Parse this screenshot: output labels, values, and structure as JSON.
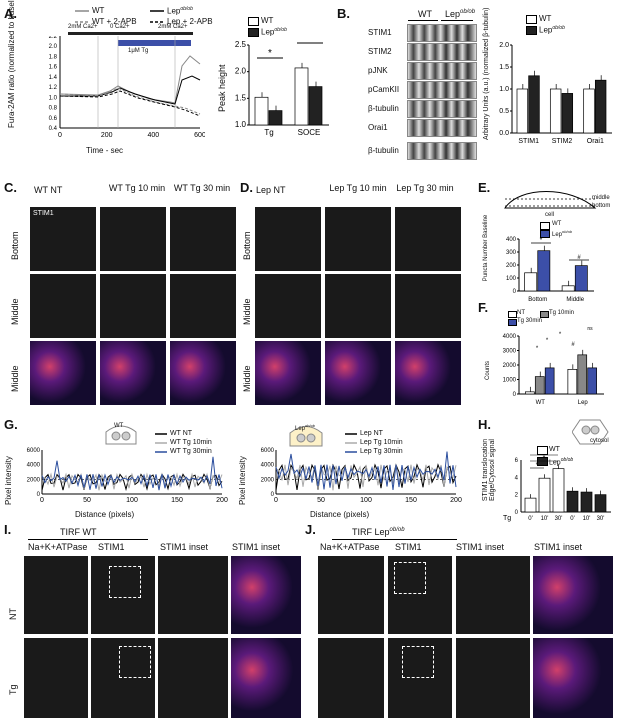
{
  "panels": {
    "A": "A.",
    "B": "B.",
    "C": "C.",
    "D": "D.",
    "E": "E.",
    "F": "F.",
    "G": "G.",
    "H": "H.",
    "I": "I.",
    "J": "J."
  },
  "panelA": {
    "legend": [
      "WT",
      "WT + 2-APB",
      "Lep",
      "Lep + 2-APB"
    ],
    "sup": "ob/ob",
    "protocol": [
      "2mM Ca2+",
      "0 Ca2+",
      "2mM Ca2+"
    ],
    "tg": "1μM Tg",
    "ylabel": "Fura-2AM ratio (normalized to baseline)",
    "xlabel": "Time - sec",
    "xticks": [
      "0",
      "200",
      "400",
      "600"
    ],
    "yticks": [
      "0.4",
      "0.6",
      "0.8",
      "1.0",
      "1.2",
      "1.4",
      "1.6",
      "1.8",
      "2.0",
      "2.2"
    ]
  },
  "panelA_bar": {
    "legend": [
      "WT",
      "Lep"
    ],
    "ylabel": "Peak height",
    "categories": [
      "Tg",
      "SOCE"
    ],
    "yticks": [
      "1.0",
      "1.5",
      "2.0",
      "2.5"
    ],
    "stars": [
      "*",
      "*"
    ]
  },
  "panelB": {
    "header": [
      "WT",
      "Lep"
    ],
    "blots": [
      "STIM1",
      "STIM2",
      "pJNK",
      "pCamKII",
      "β-tubulin",
      "Orai1",
      "β-tubulin"
    ],
    "legend": [
      "WT",
      "Lep"
    ],
    "ylabel": "Arbitrary Units (a.u.) (normalized β-tubulin)",
    "categories": [
      "STIM1",
      "STIM2",
      "Orai1"
    ],
    "yticks": [
      "0.0",
      "0.5",
      "1.0",
      "1.5",
      "2.0"
    ]
  },
  "panelC": {
    "cols": [
      "WT NT",
      "WT Tg 10 min",
      "WT Tg 30 min"
    ],
    "rows": [
      "Bottom",
      "Middle",
      "Middle"
    ],
    "inset": "STIM1"
  },
  "panelD": {
    "cols": [
      "Lep NT",
      "Lep Tg 10 min",
      "Lep Tg 30 min"
    ],
    "rows": [
      "Bottom",
      "Middle",
      "Middle"
    ]
  },
  "panelE": {
    "diagram": [
      "middle",
      "bottom",
      "cell"
    ],
    "legend": [
      "WT",
      "Lep"
    ],
    "ylabel": "Puncta Number Baseline",
    "categories": [
      "Bottom",
      "Middle"
    ],
    "yticks": [
      "0",
      "100",
      "200",
      "300",
      "400"
    ],
    "stars": [
      "*",
      "#"
    ]
  },
  "panelF": {
    "legend": [
      "NT",
      "Tg 10min",
      "Tg 30min"
    ],
    "ylabel": "Counts",
    "categories": [
      "WT",
      "Lep"
    ],
    "yticks": [
      "0",
      "1000",
      "2000",
      "3000",
      "4000"
    ],
    "stars": [
      "ns",
      "*",
      "*",
      "#",
      "*"
    ]
  },
  "panelG": {
    "left_legend": [
      "WT NT",
      "WT Tg 10min",
      "WT Tg 30min"
    ],
    "right_legend": [
      "Lep NT",
      "Lep Tg 10min",
      "Lep Tg 30min"
    ],
    "left_icon": "WT",
    "right_icon": "Lep",
    "ylabel": "Pixel intensity",
    "xlabel": "Distance (pixels)",
    "left_xticks": [
      "0",
      "50",
      "100",
      "150",
      "200"
    ],
    "right_xticks": [
      "0",
      "50",
      "100",
      "150",
      "200"
    ],
    "yticks": [
      "0",
      "2000",
      "4000",
      "6000"
    ]
  },
  "panelH": {
    "legend": [
      "WT",
      "Lep"
    ],
    "ylabel": "STIM1 translocation Edge/Cytosol signal",
    "icon_label": "cytosol",
    "xlabels": [
      "0'",
      "10'",
      "30'",
      "0'",
      "10'",
      "30'"
    ],
    "tg": "Tg",
    "yticks": [
      "0",
      "2",
      "4",
      "6"
    ],
    "stars": [
      "*",
      "*",
      "**"
    ]
  },
  "panelI": {
    "title": "TIRF WT",
    "cols": [
      "Na+K+ATPase",
      "STIM1",
      "STIM1 inset",
      "STIM1 inset"
    ],
    "rows": [
      "NT",
      "Tg"
    ]
  },
  "panelJ": {
    "title": "TIRF Lep",
    "cols": [
      "Na+K+ATPase",
      "STIM1",
      "STIM1 inset",
      "STIM1 inset"
    ]
  },
  "ob": "ob/ob",
  "chart_data": [
    {
      "type": "bar",
      "title": "",
      "categories": [
        "Tg",
        "SOCE"
      ],
      "series": [
        {
          "name": "WT",
          "values": [
            1.52,
            2.07
          ]
        },
        {
          "name": "Lep",
          "values": [
            1.27,
            1.72
          ]
        }
      ],
      "ylabel": "Peak height",
      "ylim": [
        1.0,
        2.5
      ]
    },
    {
      "type": "bar",
      "title": "",
      "categories": [
        "STIM1",
        "STIM2",
        "Orai1"
      ],
      "series": [
        {
          "name": "WT",
          "values": [
            1.0,
            1.0,
            1.0
          ]
        },
        {
          "name": "Lep",
          "values": [
            1.3,
            0.9,
            1.2
          ]
        }
      ],
      "ylabel": "Arbitrary Units (a.u.) (normalized β-tubulin)",
      "ylim": [
        0.0,
        2.0
      ]
    },
    {
      "type": "bar",
      "title": "",
      "categories": [
        "Bottom",
        "Middle"
      ],
      "series": [
        {
          "name": "WT",
          "values": [
            140,
            40
          ]
        },
        {
          "name": "Lep",
          "values": [
            310,
            195
          ]
        }
      ],
      "ylabel": "Puncta Number Baseline",
      "ylim": [
        0,
        400
      ]
    },
    {
      "type": "bar",
      "title": "",
      "categories": [
        "WT",
        "Lep"
      ],
      "series": [
        {
          "name": "NT",
          "values": [
            150,
            1700
          ]
        },
        {
          "name": "Tg 10min",
          "values": [
            1200,
            2700
          ]
        },
        {
          "name": "Tg 30min",
          "values": [
            1800,
            1800
          ]
        }
      ],
      "ylabel": "Counts",
      "ylim": [
        0,
        4000
      ]
    },
    {
      "type": "bar",
      "title": "",
      "categories": [
        "0'",
        "10'",
        "30'"
      ],
      "series": [
        {
          "name": "WT",
          "values": [
            1.6,
            3.9,
            5.0
          ]
        },
        {
          "name": "Lep",
          "values": [
            2.4,
            2.3,
            2.0
          ]
        }
      ],
      "ylabel": "STIM1 translocation Edge/Cytosol signal",
      "ylim": [
        0,
        6
      ]
    }
  ]
}
